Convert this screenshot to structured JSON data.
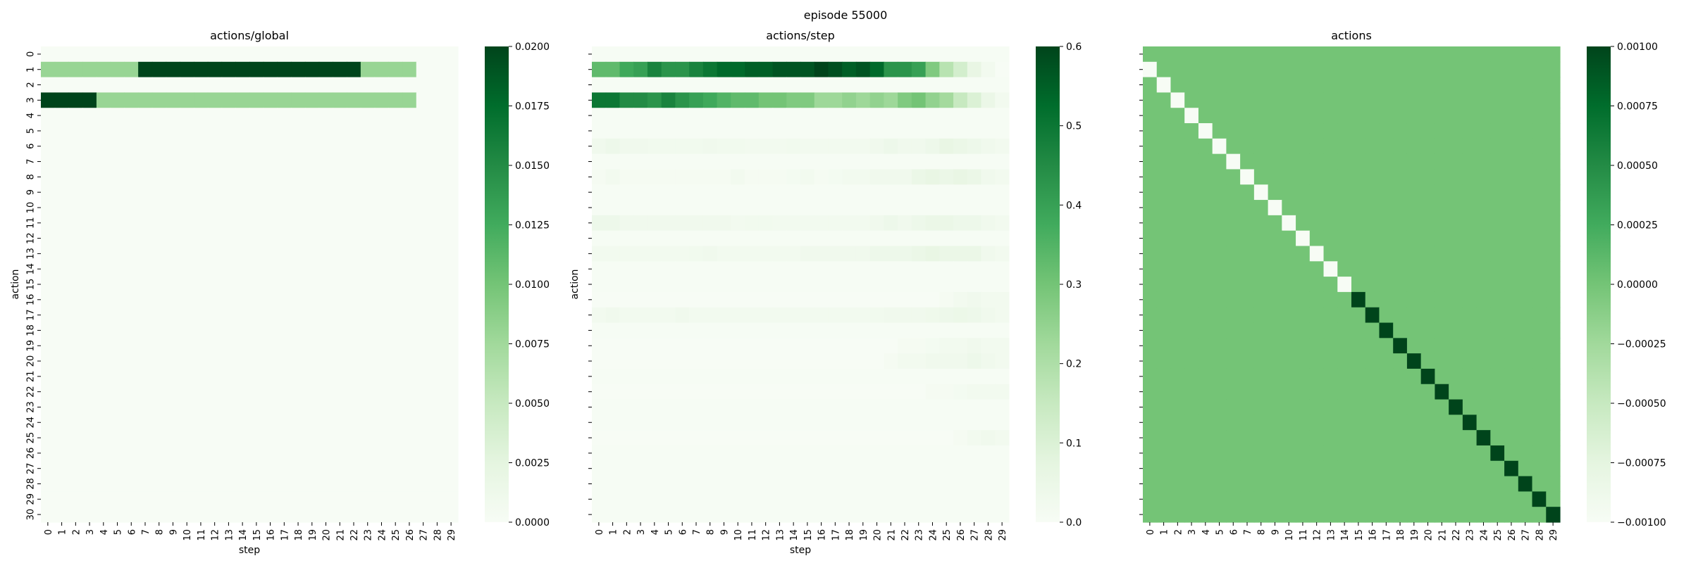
{
  "suptitle": "episode 55000",
  "colors": {
    "cmap": [
      "#f7fcf5",
      "#e5f5e0",
      "#c7e9c0",
      "#a1d99b",
      "#74c476",
      "#41ab5d",
      "#238b45",
      "#006d2c",
      "#00441b"
    ],
    "tick": "#000000"
  },
  "chart_data": [
    {
      "type": "heatmap",
      "title": "actions/global",
      "xlabel": "step",
      "ylabel": "action",
      "x_ticks": [
        0,
        1,
        2,
        3,
        4,
        5,
        6,
        7,
        8,
        9,
        10,
        11,
        12,
        13,
        14,
        15,
        16,
        17,
        18,
        19,
        20,
        21,
        22,
        23,
        24,
        25,
        26,
        27,
        28,
        29
      ],
      "y_ticks": [
        0,
        1,
        2,
        3,
        4,
        5,
        6,
        7,
        8,
        9,
        10,
        11,
        12,
        13,
        14,
        15,
        16,
        17,
        18,
        19,
        20,
        21,
        22,
        23,
        24,
        25,
        26,
        27,
        28,
        29,
        30
      ],
      "show_y_tick_labels": true,
      "vmin": 0.0,
      "vmax": 0.02,
      "colorbar_ticks": [
        "0.0000",
        "0.0025",
        "0.0050",
        "0.0075",
        "0.0100",
        "0.0125",
        "0.0150",
        "0.0175",
        "0.0200"
      ],
      "colorbar_tick_values": [
        0,
        0.0025,
        0.005,
        0.0075,
        0.01,
        0.0125,
        0.015,
        0.0175,
        0.02
      ],
      "background_value": 0.0,
      "rows": [
        {
          "action": 1,
          "segments": [
            {
              "from_step": 0,
              "to_step": 6,
              "value": 0.008
            },
            {
              "from_step": 7,
              "to_step": 22,
              "value": 0.02
            },
            {
              "from_step": 23,
              "to_step": 26,
              "value": 0.008
            }
          ]
        },
        {
          "action": 3,
          "segments": [
            {
              "from_step": 0,
              "to_step": 3,
              "value": 0.02
            },
            {
              "from_step": 4,
              "to_step": 26,
              "value": 0.008
            }
          ]
        }
      ]
    },
    {
      "type": "heatmap",
      "title": "actions/step",
      "xlabel": "step",
      "ylabel": "action",
      "x_ticks": [
        0,
        1,
        2,
        3,
        4,
        5,
        6,
        7,
        8,
        9,
        10,
        11,
        12,
        13,
        14,
        15,
        16,
        17,
        18,
        19,
        20,
        21,
        22,
        23,
        24,
        25,
        26,
        27,
        28,
        29
      ],
      "y_ticks": [
        0,
        1,
        2,
        3,
        4,
        5,
        6,
        7,
        8,
        9,
        10,
        11,
        12,
        13,
        14,
        15,
        16,
        17,
        18,
        19,
        20,
        21,
        22,
        23,
        24,
        25,
        26,
        27,
        28,
        29,
        30
      ],
      "show_y_tick_labels": false,
      "vmin": 0.0,
      "vmax": 0.6,
      "colorbar_ticks": [
        "0.0",
        "0.1",
        "0.2",
        "0.3",
        "0.4",
        "0.5",
        "0.6"
      ],
      "colorbar_tick_values": [
        0,
        0.1,
        0.2,
        0.3,
        0.4,
        0.5,
        0.6
      ],
      "background_value": 0.005,
      "rows": [
        {
          "action": 1,
          "values": [
            0.33,
            0.33,
            0.38,
            0.4,
            0.47,
            0.43,
            0.43,
            0.47,
            0.5,
            0.53,
            0.53,
            0.55,
            0.55,
            0.57,
            0.57,
            0.57,
            0.6,
            0.58,
            0.55,
            0.57,
            0.53,
            0.43,
            0.43,
            0.4,
            0.28,
            0.18,
            0.12,
            0.06,
            0.02,
            0.0
          ]
        },
        {
          "action": 3,
          "values": [
            0.5,
            0.5,
            0.45,
            0.45,
            0.43,
            0.47,
            0.43,
            0.4,
            0.38,
            0.35,
            0.33,
            0.33,
            0.3,
            0.3,
            0.28,
            0.28,
            0.23,
            0.23,
            0.25,
            0.23,
            0.25,
            0.23,
            0.28,
            0.3,
            0.25,
            0.22,
            0.15,
            0.1,
            0.05,
            0.02
          ]
        },
        {
          "action": 6,
          "values": [
            0.03,
            0.04,
            0.03,
            0.03,
            0.025,
            0.025,
            0.025,
            0.025,
            0.03,
            0.025,
            0.025,
            0.02,
            0.02,
            0.02,
            0.025,
            0.02,
            0.02,
            0.02,
            0.02,
            0.02,
            0.03,
            0.04,
            0.03,
            0.03,
            0.04,
            0.06,
            0.05,
            0.04,
            0.03,
            0.02
          ]
        },
        {
          "action": 8,
          "values": [
            0.01,
            0.02,
            0.01,
            0.01,
            0.01,
            0.01,
            0.01,
            0.01,
            0.01,
            0.01,
            0.02,
            0.01,
            0.01,
            0.01,
            0.015,
            0.02,
            0.01,
            0.015,
            0.02,
            0.02,
            0.03,
            0.03,
            0.03,
            0.05,
            0.06,
            0.05,
            0.06,
            0.05,
            0.03,
            0.02
          ]
        },
        {
          "action": 11,
          "values": [
            0.04,
            0.04,
            0.03,
            0.03,
            0.03,
            0.03,
            0.03,
            0.03,
            0.03,
            0.03,
            0.02,
            0.025,
            0.025,
            0.02,
            0.02,
            0.02,
            0.02,
            0.02,
            0.02,
            0.02,
            0.03,
            0.04,
            0.03,
            0.04,
            0.05,
            0.05,
            0.04,
            0.04,
            0.03,
            0.02
          ]
        },
        {
          "action": 13,
          "values": [
            0.02,
            0.02,
            0.02,
            0.02,
            0.02,
            0.02,
            0.02,
            0.025,
            0.03,
            0.02,
            0.02,
            0.02,
            0.02,
            0.02,
            0.02,
            0.03,
            0.03,
            0.03,
            0.03,
            0.03,
            0.04,
            0.04,
            0.04,
            0.05,
            0.06,
            0.05,
            0.05,
            0.05,
            0.03,
            0.02
          ]
        },
        {
          "action": 17,
          "values": [
            0.02,
            0.03,
            0.02,
            0.02,
            0.02,
            0.02,
            0.03,
            0.02,
            0.02,
            0.02,
            0.02,
            0.02,
            0.02,
            0.02,
            0.02,
            0.02,
            0.02,
            0.02,
            0.02,
            0.02,
            0.025,
            0.03,
            0.03,
            0.03,
            0.035,
            0.04,
            0.045,
            0.04,
            0.03,
            0.02
          ]
        },
        {
          "action": 16,
          "values": [
            0.0,
            0.0,
            0.0,
            0.0,
            0.0,
            0.0,
            0.0,
            0.0,
            0.0,
            0.0,
            0.0,
            0.0,
            0.0,
            0.0,
            0.0,
            0.0,
            0.0,
            0.0,
            0.0,
            0.0,
            0.0,
            0.0,
            0.0,
            0.0,
            0.0,
            0.01,
            0.02,
            0.03,
            0.02,
            0.02
          ]
        },
        {
          "action": 19,
          "values": [
            0.0,
            0.0,
            0.0,
            0.0,
            0.0,
            0.0,
            0.0,
            0.0,
            0.0,
            0.0,
            0.0,
            0.0,
            0.0,
            0.0,
            0.0,
            0.0,
            0.0,
            0.0,
            0.0,
            0.0,
            0.0,
            0.0,
            0.01,
            0.01,
            0.015,
            0.02,
            0.02,
            0.03,
            0.02,
            0.02
          ]
        },
        {
          "action": 20,
          "values": [
            0.0,
            0.0,
            0.0,
            0.0,
            0.0,
            0.0,
            0.0,
            0.0,
            0.0,
            0.0,
            0.0,
            0.0,
            0.0,
            0.0,
            0.0,
            0.0,
            0.0,
            0.0,
            0.0,
            0.0,
            0.0,
            0.01,
            0.02,
            0.02,
            0.03,
            0.03,
            0.03,
            0.04,
            0.03,
            0.02
          ]
        },
        {
          "action": 22,
          "values": [
            0.0,
            0.0,
            0.0,
            0.0,
            0.0,
            0.0,
            0.0,
            0.0,
            0.0,
            0.0,
            0.0,
            0.0,
            0.0,
            0.0,
            0.0,
            0.0,
            0.0,
            0.0,
            0.0,
            0.0,
            0.0,
            0.0,
            0.0,
            0.0,
            0.01,
            0.01,
            0.015,
            0.02,
            0.02,
            0.02
          ]
        },
        {
          "action": 25,
          "values": [
            0.0,
            0.0,
            0.0,
            0.0,
            0.0,
            0.0,
            0.0,
            0.0,
            0.0,
            0.0,
            0.0,
            0.0,
            0.0,
            0.0,
            0.0,
            0.0,
            0.0,
            0.0,
            0.0,
            0.0,
            0.0,
            0.0,
            0.0,
            0.0,
            0.0,
            0.0,
            0.01,
            0.02,
            0.03,
            0.02
          ]
        }
      ]
    },
    {
      "type": "heatmap",
      "title": "actions",
      "xlabel": "",
      "ylabel": "",
      "x_ticks": [
        0,
        1,
        2,
        3,
        4,
        5,
        6,
        7,
        8,
        9,
        10,
        11,
        12,
        13,
        14,
        15,
        16,
        17,
        18,
        19,
        20,
        21,
        22,
        23,
        24,
        25,
        26,
        27,
        28,
        29
      ],
      "y_ticks": [
        0,
        1,
        2,
        3,
        4,
        5,
        6,
        7,
        8,
        9,
        10,
        11,
        12,
        13,
        14,
        15,
        16,
        17,
        18,
        19,
        20,
        21,
        22,
        23,
        24,
        25,
        26,
        27,
        28,
        29,
        30
      ],
      "show_y_tick_labels": false,
      "vmin": -0.001,
      "vmax": 0.001,
      "colorbar_ticks": [
        "−0.00100",
        "−0.00075",
        "−0.00050",
        "−0.00025",
        "0.00000",
        "0.00025",
        "0.00050",
        "0.00075",
        "0.00100"
      ],
      "colorbar_tick_values": [
        -0.001,
        -0.00075,
        -0.0005,
        -0.00025,
        0,
        0.00025,
        0.0005,
        0.00075,
        0.001
      ],
      "background_value": 0.0,
      "diagonal": {
        "row_offset": 1,
        "low_steps": [
          0,
          1,
          2,
          3,
          4,
          5,
          6,
          7,
          8,
          9,
          10,
          11,
          12,
          13,
          14
        ],
        "low_value": -0.001,
        "high_steps": [
          15,
          16,
          17,
          18,
          19,
          20,
          21,
          22,
          23,
          24,
          25,
          26,
          27,
          28,
          29
        ],
        "high_value": 0.001
      }
    }
  ]
}
